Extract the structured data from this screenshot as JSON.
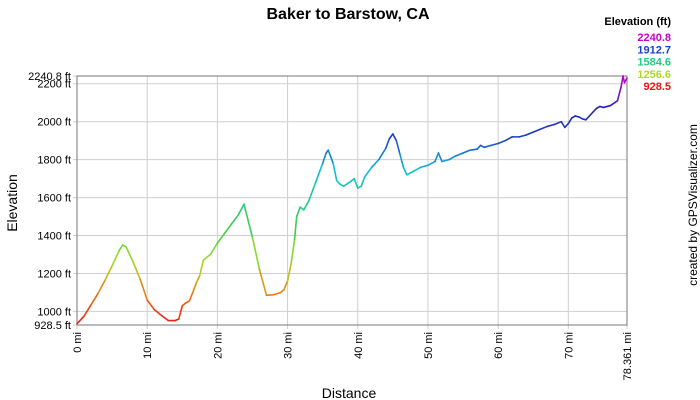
{
  "chart_data": {
    "type": "line",
    "title": "Baker to Barstow, CA",
    "xlabel": "Distance",
    "ylabel": "Elevation",
    "xlim": [
      0,
      78.361
    ],
    "ylim": [
      928.5,
      2240.8
    ],
    "grid": true,
    "x_ticks": [
      {
        "value": 0,
        "label": "0 mi"
      },
      {
        "value": 10,
        "label": "10 mi"
      },
      {
        "value": 20,
        "label": "20 mi"
      },
      {
        "value": 30,
        "label": "30 mi"
      },
      {
        "value": 40,
        "label": "40 mi"
      },
      {
        "value": 50,
        "label": "50 mi"
      },
      {
        "value": 60,
        "label": "60 mi"
      },
      {
        "value": 70,
        "label": "70 mi"
      },
      {
        "value": 78.361,
        "label": "78.361 mi"
      }
    ],
    "y_ticks": [
      {
        "value": 928.5,
        "label": "928.5 ft"
      },
      {
        "value": 1000,
        "label": "1000 ft"
      },
      {
        "value": 1200,
        "label": "1200 ft"
      },
      {
        "value": 1400,
        "label": "1400 ft"
      },
      {
        "value": 1600,
        "label": "1600 ft"
      },
      {
        "value": 1800,
        "label": "1800 ft"
      },
      {
        "value": 2000,
        "label": "2000 ft"
      },
      {
        "value": 2200,
        "label": "2200 ft"
      },
      {
        "value": 2240.8,
        "label": "2240.8 ft"
      }
    ],
    "legend": {
      "position": "top-right",
      "title": "Elevation (ft)",
      "items": [
        {
          "label": "2240.8",
          "color": "#cc00cc"
        },
        {
          "label": "1912.7",
          "color": "#1a3fcc"
        },
        {
          "label": "1584.6",
          "color": "#22cc88"
        },
        {
          "label": "1256.6",
          "color": "#aadd22"
        },
        {
          "label": "928.5",
          "color": "#ee1111"
        }
      ]
    },
    "color_scale": {
      "min": 928.5,
      "max": 2240.8,
      "stops": [
        {
          "value": 928.5,
          "color": "#ee1111"
        },
        {
          "value": 1092.5,
          "color": "#ee7711"
        },
        {
          "value": 1256.6,
          "color": "#aadd22"
        },
        {
          "value": 1420.6,
          "color": "#44cc44"
        },
        {
          "value": 1584.6,
          "color": "#22cc88"
        },
        {
          "value": 1748.6,
          "color": "#11bbdd"
        },
        {
          "value": 1912.7,
          "color": "#1a3fcc"
        },
        {
          "value": 2076.8,
          "color": "#2222bb"
        },
        {
          "value": 2240.8,
          "color": "#cc00cc"
        }
      ]
    },
    "series": [
      {
        "points": [
          [
            0,
            935
          ],
          [
            1,
            975
          ],
          [
            2,
            1035
          ],
          [
            3,
            1095
          ],
          [
            4,
            1165
          ],
          [
            5,
            1240
          ],
          [
            6,
            1320
          ],
          [
            6.5,
            1350
          ],
          [
            7,
            1340
          ],
          [
            8,
            1260
          ],
          [
            9,
            1170
          ],
          [
            10,
            1060
          ],
          [
            11,
            1010
          ],
          [
            12,
            980
          ],
          [
            13,
            952
          ],
          [
            14,
            952
          ],
          [
            14.5,
            960
          ],
          [
            15,
            1030
          ],
          [
            15.5,
            1045
          ],
          [
            16,
            1055
          ],
          [
            16.5,
            1100
          ],
          [
            17,
            1150
          ],
          [
            17.5,
            1190
          ],
          [
            18,
            1270
          ],
          [
            19,
            1300
          ],
          [
            20,
            1360
          ],
          [
            21,
            1410
          ],
          [
            22,
            1460
          ],
          [
            23,
            1510
          ],
          [
            23.5,
            1545
          ],
          [
            23.8,
            1565
          ],
          [
            24,
            1535
          ],
          [
            25,
            1390
          ],
          [
            26,
            1220
          ],
          [
            27,
            1085
          ],
          [
            28,
            1088
          ],
          [
            29,
            1100
          ],
          [
            29.5,
            1115
          ],
          [
            30,
            1160
          ],
          [
            30.5,
            1250
          ],
          [
            31,
            1380
          ],
          [
            31.3,
            1500
          ],
          [
            31.8,
            1550
          ],
          [
            32.3,
            1535
          ],
          [
            33,
            1580
          ],
          [
            34,
            1680
          ],
          [
            35,
            1780
          ],
          [
            35.5,
            1835
          ],
          [
            35.8,
            1850
          ],
          [
            36.5,
            1780
          ],
          [
            37,
            1690
          ],
          [
            37.5,
            1670
          ],
          [
            38,
            1660
          ],
          [
            39,
            1685
          ],
          [
            39.5,
            1700
          ],
          [
            40,
            1650
          ],
          [
            40.5,
            1660
          ],
          [
            41,
            1710
          ],
          [
            42,
            1760
          ],
          [
            43,
            1800
          ],
          [
            44,
            1860
          ],
          [
            44.5,
            1910
          ],
          [
            45,
            1935
          ],
          [
            45.5,
            1900
          ],
          [
            46,
            1830
          ],
          [
            46.5,
            1760
          ],
          [
            47,
            1720
          ],
          [
            48,
            1740
          ],
          [
            49,
            1760
          ],
          [
            50,
            1770
          ],
          [
            51,
            1790
          ],
          [
            51.5,
            1835
          ],
          [
            52,
            1790
          ],
          [
            53,
            1800
          ],
          [
            54,
            1820
          ],
          [
            55,
            1835
          ],
          [
            56,
            1850
          ],
          [
            57,
            1855
          ],
          [
            57.5,
            1875
          ],
          [
            58,
            1865
          ],
          [
            59,
            1875
          ],
          [
            60,
            1885
          ],
          [
            61,
            1900
          ],
          [
            62,
            1920
          ],
          [
            63,
            1920
          ],
          [
            64,
            1930
          ],
          [
            65,
            1945
          ],
          [
            66,
            1960
          ],
          [
            67,
            1975
          ],
          [
            68,
            1985
          ],
          [
            69,
            2000
          ],
          [
            69.5,
            1970
          ],
          [
            70,
            1990
          ],
          [
            70.5,
            2020
          ],
          [
            71,
            2030
          ],
          [
            71.5,
            2025
          ],
          [
            72,
            2015
          ],
          [
            72.5,
            2010
          ],
          [
            73,
            2030
          ],
          [
            74,
            2070
          ],
          [
            74.5,
            2080
          ],
          [
            75,
            2075
          ],
          [
            76,
            2085
          ],
          [
            77,
            2110
          ],
          [
            77.5,
            2180
          ],
          [
            77.8,
            2240.8
          ],
          [
            78,
            2205
          ],
          [
            78.361,
            2230
          ]
        ]
      }
    ],
    "credit": "created by GPSVisualizer.com"
  }
}
